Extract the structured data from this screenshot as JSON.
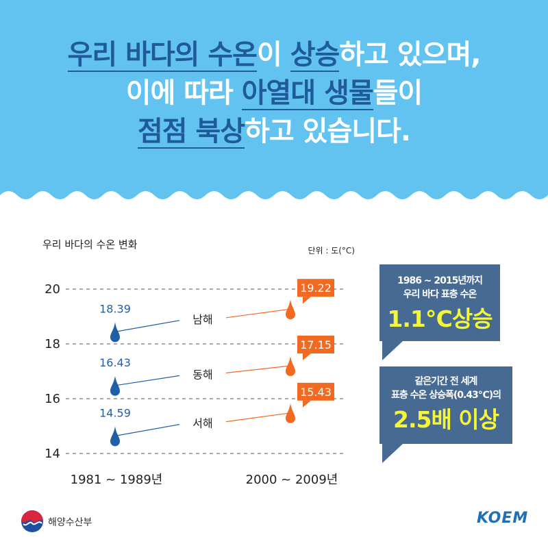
{
  "headline": {
    "lines": [
      [
        {
          "t": "우리 바다의 수온",
          "hl": true
        },
        {
          "t": "이 ",
          "hl": false
        },
        {
          "t": "상승",
          "hl": true
        },
        {
          "t": "하고 있으며,",
          "hl": false
        }
      ],
      [
        {
          "t": "이에 따라 ",
          "hl": false
        },
        {
          "t": "아열대 생물",
          "hl": true
        },
        {
          "t": "들이",
          "hl": false
        }
      ],
      [
        {
          "t": "점점 북상",
          "hl": true
        },
        {
          "t": "하고 있습니다.",
          "hl": false
        }
      ]
    ]
  },
  "colors": {
    "sky": "#63c3f0",
    "accent_dark_blue": "#1f5a9a",
    "drop_past": "#1f5fa8",
    "drop_recent": "#f26a21",
    "callout_bg": "#466a92",
    "callout_highlight": "#f5f53a"
  },
  "chart_data": {
    "type": "line",
    "title": "우리 바다의 수온 변화",
    "unit_label": "단위 : 도(°C)",
    "x": [
      "1981 ~ 1989년",
      "2000 ~ 2009년"
    ],
    "ylim": [
      14,
      20
    ],
    "yticks": [
      14,
      16,
      18,
      20
    ],
    "grid": true,
    "series": [
      {
        "name": "남해",
        "values": [
          18.39,
          19.22
        ]
      },
      {
        "name": "동해",
        "values": [
          16.43,
          17.15
        ]
      },
      {
        "name": "서해",
        "values": [
          14.59,
          15.43
        ]
      }
    ]
  },
  "callouts": [
    {
      "lines": [
        "1986 ~ 2015년까지",
        "우리 바다 표층 수온"
      ],
      "big": "1.1℃상승"
    },
    {
      "lines": [
        "같은기간 전 세계",
        "표층 수온 상승폭(0.43℃)의"
      ],
      "big": "2.5배 이상"
    }
  ],
  "footer": {
    "ministry": "해양수산부",
    "agency_logo": "KOEM"
  }
}
